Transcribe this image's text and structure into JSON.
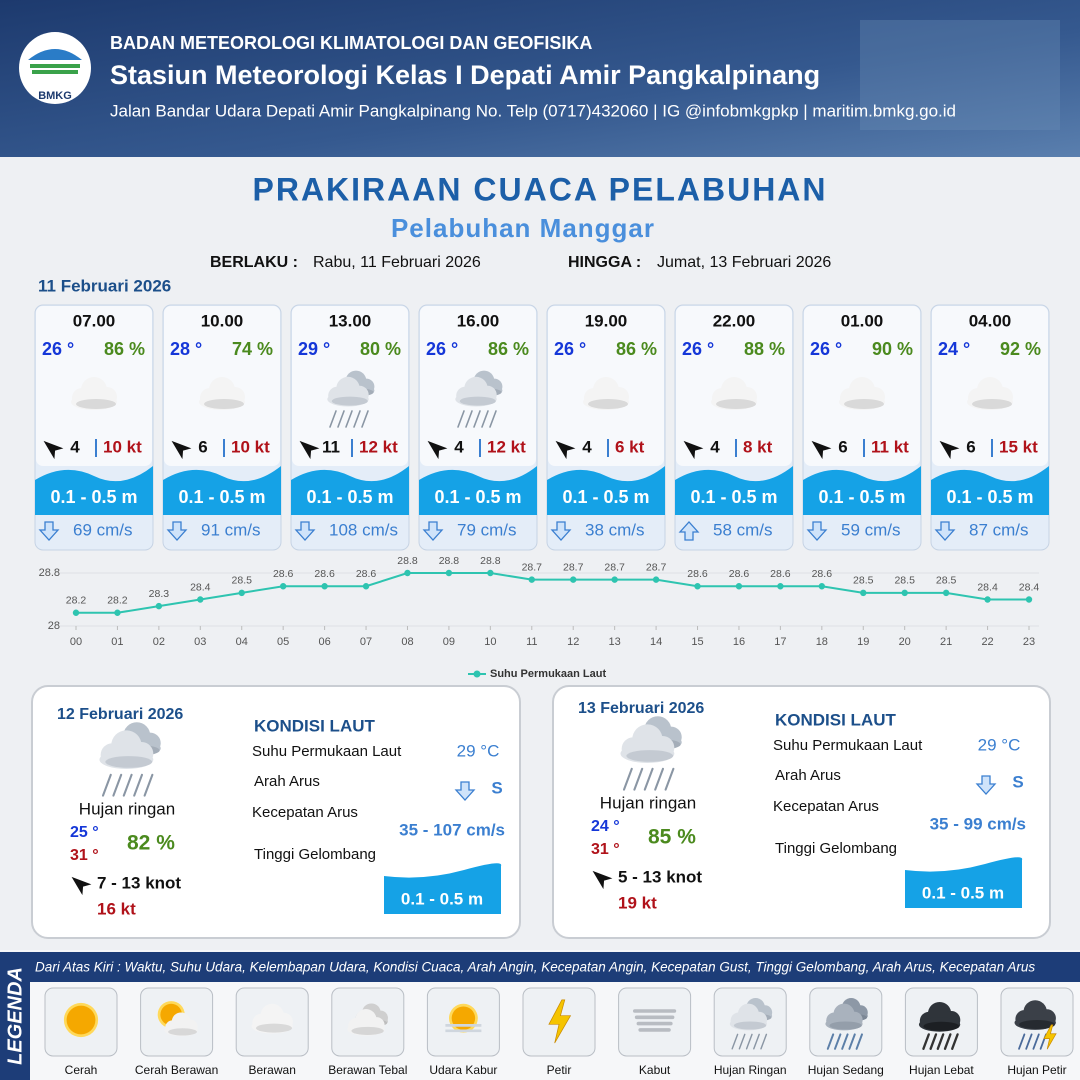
{
  "header": {
    "logo_text": "BMKG",
    "org": "BADAN METEOROLOGI KLIMATOLOGI DAN GEOFISIKA",
    "station": "Stasiun Meteorologi Kelas I Depati Amir Pangkalpinang",
    "address": "Jalan Bandar Udara Depati Amir Pangkalpinang No. Telp (0717)432060 | IG @infobmkgpkp | maritim.bmkg.go.id"
  },
  "title": "PRAKIRAAN CUACA PELABUHAN",
  "subtitle": "Pelabuhan Manggar",
  "validity": {
    "from_label": "BERLAKU :",
    "from": "Rabu, 11 Februari 2026",
    "to_label": "HINGGA :",
    "to": "Jumat, 13 Februari 2026"
  },
  "day1": {
    "date": "11 Februari 2026",
    "slots": [
      {
        "time": "07.00",
        "temp": "26 °",
        "humidity": "86 %",
        "condition": "Berawan",
        "wind": "4",
        "gust": "10 kt",
        "wave": "0.1 - 0.5 m",
        "current": "69 cm/s",
        "current_arrow": "down"
      },
      {
        "time": "10.00",
        "temp": "28 °",
        "humidity": "74 %",
        "condition": "Berawan",
        "wind": "6",
        "gust": "10 kt",
        "wave": "0.1 - 0.5 m",
        "current": "91 cm/s",
        "current_arrow": "down"
      },
      {
        "time": "13.00",
        "temp": "29 °",
        "humidity": "80 %",
        "condition": "Hujan Ringan",
        "wind": "11",
        "gust": "12 kt",
        "wave": "0.1 - 0.5 m",
        "current": "108 cm/s",
        "current_arrow": "down"
      },
      {
        "time": "16.00",
        "temp": "26 °",
        "humidity": "86 %",
        "condition": "Hujan Ringan",
        "wind": "4",
        "gust": "12 kt",
        "wave": "0.1 - 0.5 m",
        "current": "79 cm/s",
        "current_arrow": "down"
      },
      {
        "time": "19.00",
        "temp": "26 °",
        "humidity": "86 %",
        "condition": "Berawan",
        "wind": "4",
        "gust": "6 kt",
        "wave": "0.1 - 0.5 m",
        "current": "38 cm/s",
        "current_arrow": "down"
      },
      {
        "time": "22.00",
        "temp": "26 °",
        "humidity": "88 %",
        "condition": "Berawan",
        "wind": "4",
        "gust": "8 kt",
        "wave": "0.1 - 0.5 m",
        "current": "58 cm/s",
        "current_arrow": "up"
      },
      {
        "time": "01.00",
        "temp": "26 °",
        "humidity": "90 %",
        "condition": "Berawan",
        "wind": "6",
        "gust": "11 kt",
        "wave": "0.1 - 0.5 m",
        "current": "59 cm/s",
        "current_arrow": "down"
      },
      {
        "time": "04.00",
        "temp": "24 °",
        "humidity": "92 %",
        "condition": "Berawan",
        "wind": "6",
        "gust": "15 kt",
        "wave": "0.1 - 0.5 m",
        "current": "87 cm/s",
        "current_arrow": "down"
      }
    ]
  },
  "chart_data": {
    "type": "line",
    "categories": [
      "00",
      "01",
      "02",
      "03",
      "04",
      "05",
      "06",
      "07",
      "08",
      "09",
      "10",
      "11",
      "12",
      "13",
      "14",
      "15",
      "16",
      "17",
      "18",
      "19",
      "20",
      "21",
      "22",
      "23"
    ],
    "series": [
      {
        "name": "Suhu Permukaan Laut",
        "color": "#2ec4b0",
        "values": [
          28.2,
          28.2,
          28.3,
          28.4,
          28.5,
          28.6,
          28.6,
          28.6,
          28.8,
          28.8,
          28.8,
          28.7,
          28.7,
          28.7,
          28.7,
          28.6,
          28.6,
          28.6,
          28.6,
          28.5,
          28.5,
          28.5,
          28.4,
          28.4
        ]
      }
    ],
    "ylim": [
      28,
      28.8
    ],
    "yticks": [
      28,
      28.8
    ],
    "grid": true
  },
  "days": [
    {
      "date": "12 Februari 2026",
      "condition": "Hujan ringan",
      "tmin": "25 °",
      "tmax": "31 °",
      "humidity": "82 %",
      "wind": "7  - 13 knot",
      "gust": "16 kt",
      "sea_title": "KONDISI LAUT",
      "sst_label": "Suhu Permukaan Laut",
      "sst": "29 °C",
      "dir_label": "Arah Arus",
      "dir": "S",
      "speed_label": "Kecepatan Arus",
      "speed": "35  - 107 cm/s",
      "wave_label": "Tinggi Gelombang",
      "wave": "0.1 - 0.5 m"
    },
    {
      "date": "13 Februari 2026",
      "condition": "Hujan ringan",
      "tmin": "24 °",
      "tmax": "31 °",
      "humidity": "85 %",
      "wind": "5  - 13 knot",
      "gust": "19 kt",
      "sea_title": "KONDISI LAUT",
      "sst_label": "Suhu Permukaan Laut",
      "sst": "29 °C",
      "dir_label": "Arah Arus",
      "dir": "S",
      "speed_label": "Kecepatan Arus",
      "speed": "35  - 99 cm/s",
      "wave_label": "Tinggi Gelombang",
      "wave": "0.1 - 0.5 m"
    }
  ],
  "legend": {
    "title": "LEGENDA",
    "description": "Dari Atas Kiri : Waktu, Suhu Udara, Kelembapan Udara, Kondisi Cuaca, Arah Angin, Kecepatan Angin, Kecepatan Gust, Tinggi Gelombang, Arah Arus, Kecepatan Arus",
    "items": [
      "Cerah",
      "Cerah Berawan",
      "Berawan",
      "Berawan Tebal",
      "Udara Kabur",
      "Petir",
      "Kabut",
      "Hujan Ringan",
      "Hujan Sedang",
      "Hujan Lebat",
      "Hujan Petir"
    ]
  }
}
